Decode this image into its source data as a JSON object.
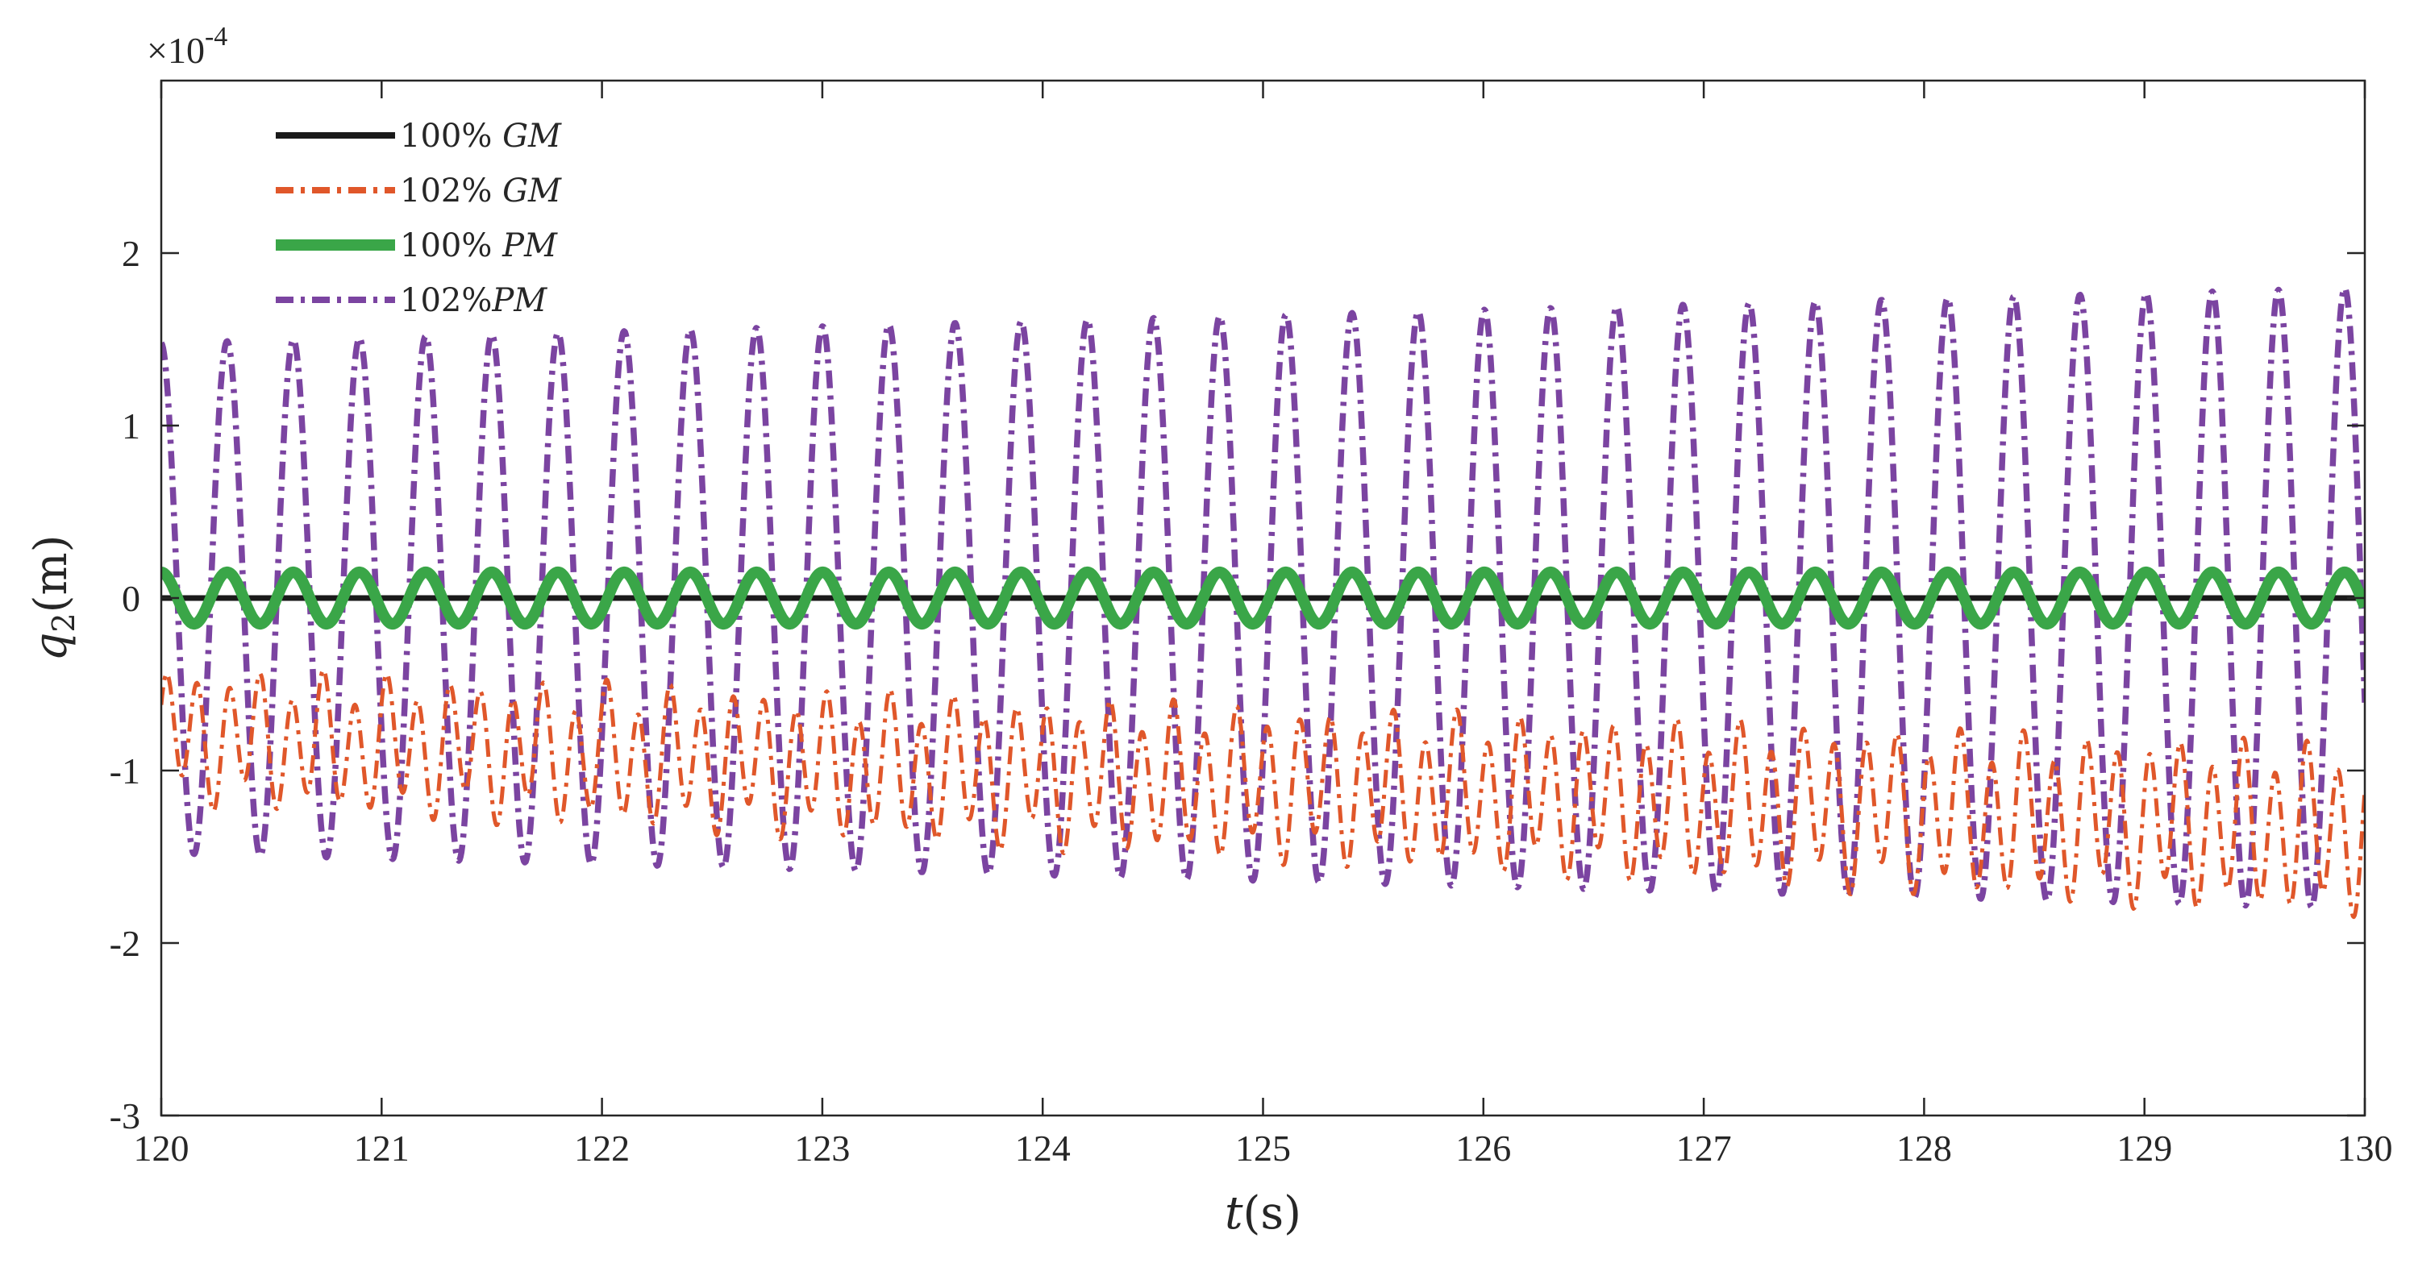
{
  "chart_data": {
    "type": "line",
    "xlabel": {
      "var": "t",
      "unit": "(s)"
    },
    "ylabel": {
      "var": "q",
      "sub": "2",
      "unit": "(m)"
    },
    "y_exponent": {
      "base": "×10",
      "exp": "-4"
    },
    "xlim": [
      120,
      130
    ],
    "ylim": [
      -3,
      3
    ],
    "x_ticks": [
      120,
      121,
      122,
      123,
      124,
      125,
      126,
      127,
      128,
      129,
      130
    ],
    "y_ticks": [
      -3,
      -2,
      -1,
      0,
      1,
      2
    ],
    "grid": false,
    "legend_position": "top-left",
    "series": [
      {
        "name": "100% GM",
        "legend": {
          "pct": "100%",
          "label": "GM"
        },
        "color": "#1a1a1a",
        "style": "solid",
        "description": "flat at zero",
        "model": {
          "offset": [
            0,
            0
          ],
          "amp": [
            0,
            0
          ],
          "freq": 0,
          "phase": 0,
          "amp2": 0,
          "freq2": 0
        }
      },
      {
        "name": "102% GM",
        "legend": {
          "pct": "102%",
          "label": "GM"
        },
        "color": "#e0572a",
        "style": "dashdot",
        "description": "fast oscillation with slowly decreasing mean",
        "model": {
          "offset": [
            -0.8,
            -1.35
          ],
          "amp": [
            0.32,
            0.42
          ],
          "freq": 7.0,
          "phase": 0.6,
          "amp2": 0.1,
          "freq2": 3.1
        }
      },
      {
        "name": "100% PM",
        "legend": {
          "pct": "100%",
          "label": "PM"
        },
        "color": "#3aa648",
        "style": "solid",
        "description": "small oscillation about zero",
        "model": {
          "offset": [
            0,
            0
          ],
          "amp": [
            0.15,
            0.15
          ],
          "freq": 3.33,
          "phase": 1.6,
          "amp2": 0,
          "freq2": 0
        }
      },
      {
        "name": "102%PM",
        "legend": {
          "pct": "102%",
          "label": "PM"
        },
        "color": "#7b44a1",
        "style": "dashdot",
        "description": "growing oscillation about zero",
        "model": {
          "offset": [
            0,
            0
          ],
          "amp": [
            1.48,
            1.8
          ],
          "freq": 3.33,
          "phase": 1.6,
          "amp2": 0,
          "freq2": 0
        }
      }
    ]
  }
}
